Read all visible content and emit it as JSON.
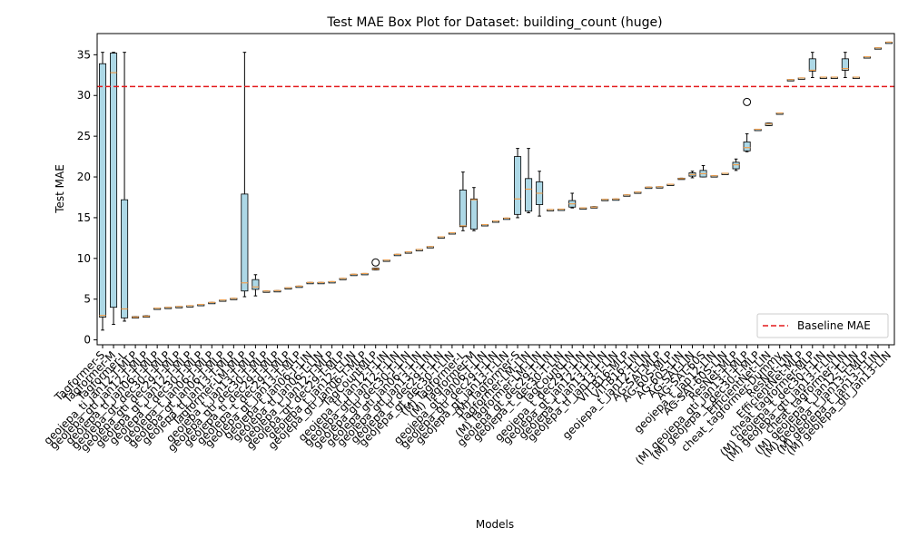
{
  "chart_data": {
    "type": "box",
    "title": "Test MAE Box Plot for Dataset: building_count (huge)",
    "xlabel": "Models",
    "ylabel": "Test MAE",
    "ylim": [
      -0.6,
      37.6
    ],
    "yticks": [
      0,
      5,
      10,
      15,
      20,
      25,
      30,
      35
    ],
    "grid": false,
    "legend": {
      "placement": "lower-right",
      "entries": [
        {
          "label": "Baseline MAE",
          "color": "#e41a1c",
          "style": "dashed"
        }
      ]
    },
    "baseline": {
      "name": "Baseline MAE",
      "value": 31.1,
      "color": "#e41a1c"
    },
    "box_fill": "#add8e6",
    "median_color": "#f0a050",
    "models": [
      {
        "label": "Tagformer-S",
        "min": 1.2,
        "q1": 2.8,
        "median": 3.0,
        "q3": 33.9,
        "max": 35.3
      },
      {
        "label": "Tagformer-M",
        "min": 1.9,
        "q1": 4.0,
        "median": 32.8,
        "q3": 35.2,
        "max": 35.3
      },
      {
        "label": "Tagformer-L",
        "min": 2.3,
        "q1": 2.7,
        "median": 3.8,
        "q3": 17.2,
        "max": 35.3
      },
      {
        "label": "geojepa_ti_jan12-T-MLP",
        "min": 2.8,
        "q1": 2.8,
        "median": 2.8,
        "q3": 2.85,
        "max": 2.85
      },
      {
        "label": "geojepa_gti_jan12-T-MLP",
        "min": 2.9,
        "q1": 2.9,
        "median": 2.9,
        "q3": 2.95,
        "max": 2.95
      },
      {
        "label": "geojepa_ti_jan06-T-MLP",
        "min": 3.85,
        "q1": 3.85,
        "median": 3.9,
        "q3": 3.9,
        "max": 3.9
      },
      {
        "label": "geojepa_gt_dec30-T-MLP",
        "min": 3.95,
        "q1": 3.95,
        "median": 4.0,
        "q3": 4.0,
        "max": 4.0
      },
      {
        "label": "geojepa_gti_dec29-T-MLP",
        "min": 4.05,
        "q1": 4.05,
        "median": 4.1,
        "q3": 4.1,
        "max": 4.1
      },
      {
        "label": "geojepa_gt_jan12-T-MLP",
        "min": 4.15,
        "q1": 4.15,
        "median": 4.2,
        "q3": 4.2,
        "max": 4.2
      },
      {
        "label": "geojepa_t_dec30-T-MLP",
        "min": 4.3,
        "q1": 4.3,
        "median": 4.35,
        "q3": 4.35,
        "max": 4.35
      },
      {
        "label": "geojepa_t_jan06-T-MLP",
        "min": 4.55,
        "q1": 4.55,
        "median": 4.6,
        "q3": 4.6,
        "max": 4.6
      },
      {
        "label": "geojepa_gt_jan06-T-MLP",
        "min": 4.85,
        "q1": 4.85,
        "median": 4.9,
        "q3": 4.9,
        "max": 4.9
      },
      {
        "label": "geojepa_ti_jan13-T-MLP",
        "min": 5.05,
        "q1": 5.05,
        "median": 5.1,
        "q3": 5.1,
        "max": 5.1
      },
      {
        "label": "Tagformer-LM-MLP",
        "min": 5.3,
        "q1": 6.0,
        "median": 7.0,
        "q3": 17.9,
        "max": 35.3
      },
      {
        "label": "geojepa_t_jan13-T-MLP",
        "min": 5.4,
        "q1": 6.2,
        "median": 6.5,
        "q3": 7.4,
        "max": 8.0
      },
      {
        "label": "geojepa_gti_dec30-T-MLP",
        "min": 5.95,
        "q1": 5.95,
        "median": 6.0,
        "q3": 6.0,
        "max": 6.0
      },
      {
        "label": "geojepa_ti_dec29-T-MLP",
        "min": 6.0,
        "q1": 6.0,
        "median": 6.05,
        "q3": 6.05,
        "max": 6.05
      },
      {
        "label": "geojepa_t_dec29-T-MLP",
        "min": 6.35,
        "q1": 6.35,
        "median": 6.4,
        "q3": 6.4,
        "max": 6.4
      },
      {
        "label": "geojepa_gt_jan13-T-MLP",
        "min": 6.55,
        "q1": 6.55,
        "median": 6.6,
        "q3": 6.6,
        "max": 6.6
      },
      {
        "label": "geojepa_t_jan06-T-LIN",
        "min": 7.0,
        "q1": 7.0,
        "median": 7.05,
        "q3": 7.05,
        "max": 7.05
      },
      {
        "label": "geojepa_ti_jan06-T-LIN",
        "min": 7.0,
        "q1": 7.0,
        "median": 7.05,
        "q3": 7.05,
        "max": 7.05
      },
      {
        "label": "geojepa_t_jan12-T-MLP",
        "min": 7.1,
        "q1": 7.1,
        "median": 7.15,
        "q3": 7.15,
        "max": 7.15
      },
      {
        "label": "geojepa_gt_dec29-T-MLP",
        "min": 7.5,
        "q1": 7.5,
        "median": 7.55,
        "q3": 7.55,
        "max": 7.55
      },
      {
        "label": "geojepa_t_jan12-T-LIN",
        "min": 8.0,
        "q1": 8.0,
        "median": 8.05,
        "q3": 8.05,
        "max": 8.05
      },
      {
        "label": "geojepa_gti_jan06-T-MLP",
        "min": 8.1,
        "q1": 8.1,
        "median": 8.15,
        "q3": 8.15,
        "max": 8.15
      },
      {
        "label": "TagCountMLP",
        "min": 8.6,
        "q1": 8.6,
        "median": 8.7,
        "q3": 8.8,
        "max": 8.8,
        "fliers": [
          9.5
        ]
      },
      {
        "label": "geojepa_ti_jan12-T-LIN",
        "min": 9.75,
        "q1": 9.75,
        "median": 9.8,
        "q3": 9.8,
        "max": 9.8
      },
      {
        "label": "geojepa_gti_jan12-T-LIN",
        "min": 10.45,
        "q1": 10.45,
        "median": 10.5,
        "q3": 10.5,
        "max": 10.5
      },
      {
        "label": "geojepa_gti_dec30-T-LIN",
        "min": 10.75,
        "q1": 10.75,
        "median": 10.8,
        "q3": 10.8,
        "max": 10.8
      },
      {
        "label": "geojepa_gti_jan06-T-LIN",
        "min": 11.05,
        "q1": 11.05,
        "median": 11.1,
        "q3": 11.1,
        "max": 11.1
      },
      {
        "label": "geojepa_gti_jan13-T-LIN",
        "min": 11.4,
        "q1": 11.4,
        "median": 11.45,
        "q3": 11.45,
        "max": 11.45
      },
      {
        "label": "geojepa_ti_dec29-T-LIN",
        "min": 12.6,
        "q1": 12.6,
        "median": 12.65,
        "q3": 12.65,
        "max": 12.65
      },
      {
        "label": "geojepa_gt_dec30-T-LIN",
        "min": 13.1,
        "q1": 13.1,
        "median": 13.15,
        "q3": 13.15,
        "max": 13.15
      },
      {
        "label": "(M) Tagformer-L",
        "min": 13.4,
        "q1": 13.9,
        "median": 14.0,
        "q3": 18.4,
        "max": 20.6
      },
      {
        "label": "(M) Tagformer-M",
        "min": 13.4,
        "q1": 13.6,
        "median": 17.2,
        "q3": 17.3,
        "max": 18.7
      },
      {
        "label": "geojepa_gt_jan06-T-LIN",
        "min": 14.1,
        "q1": 14.1,
        "median": 14.15,
        "q3": 14.15,
        "max": 14.15
      },
      {
        "label": "geojepa_gti_dec29-T-LIN",
        "min": 14.55,
        "q1": 14.55,
        "median": 14.6,
        "q3": 14.6,
        "max": 14.6
      },
      {
        "label": "geojepa_gt_jan13-T-LIN",
        "min": 14.9,
        "q1": 14.9,
        "median": 14.95,
        "q3": 14.95,
        "max": 14.95
      },
      {
        "label": "(M) Tagformer-S",
        "min": 15.0,
        "q1": 15.4,
        "median": 17.3,
        "q3": 22.5,
        "max": 23.5
      },
      {
        "label": "Tagformer-LM-LIN",
        "min": 15.6,
        "q1": 15.8,
        "median": 18.5,
        "q3": 19.8,
        "max": 23.5
      },
      {
        "label": "(M) Tagformer-LM-LIN",
        "min": 15.2,
        "q1": 16.6,
        "median": 18.0,
        "q3": 19.4,
        "max": 20.7
      },
      {
        "label": "geojepa_gt_dec29-T-LIN",
        "min": 15.95,
        "q1": 15.95,
        "median": 16.0,
        "q3": 16.0,
        "max": 16.0
      },
      {
        "label": "geojepa_t_dec30-T-LIN",
        "min": 16.0,
        "q1": 16.0,
        "median": 16.05,
        "q3": 16.05,
        "max": 16.05
      },
      {
        "label": "TagCountLIN",
        "min": 16.2,
        "q1": 16.3,
        "median": 16.7,
        "q3": 17.1,
        "max": 18.0
      },
      {
        "label": "geojepa_t_dec29-T-LIN",
        "min": 16.15,
        "q1": 16.15,
        "median": 16.2,
        "q3": 16.2,
        "max": 16.2
      },
      {
        "label": "geojepa_gt_jan12-T-LIN",
        "min": 16.25,
        "q1": 16.25,
        "median": 16.3,
        "q3": 16.35,
        "max": 16.35
      },
      {
        "label": "geojepa_t_jan13-T-LIN",
        "min": 17.2,
        "q1": 17.2,
        "median": 17.25,
        "q3": 17.25,
        "max": 17.25
      },
      {
        "label": "geojepa_ti_jan13-T-LIN",
        "min": 17.25,
        "q1": 17.25,
        "median": 17.3,
        "q3": 17.3,
        "max": 17.3
      },
      {
        "label": "ViT-B16-MLP",
        "min": 17.75,
        "q1": 17.75,
        "median": 17.8,
        "q3": 17.8,
        "max": 17.8
      },
      {
        "label": "ViT-B16-LIN",
        "min": 18.1,
        "q1": 18.1,
        "median": 18.15,
        "q3": 18.15,
        "max": 18.15
      },
      {
        "label": "geojepa_t_jan12-T-LIN",
        "min": 18.7,
        "q1": 18.7,
        "median": 18.75,
        "q3": 18.75,
        "max": 18.75
      },
      {
        "label": "AG-SAT-MLP",
        "min": 18.75,
        "q1": 18.75,
        "median": 18.8,
        "q3": 18.8,
        "max": 18.8
      },
      {
        "label": "AG-60S-MLP",
        "min": 19.05,
        "q1": 19.05,
        "median": 19.1,
        "q3": 19.1,
        "max": 19.1
      },
      {
        "label": "AG-60S-LIN",
        "min": 19.75,
        "q1": 19.75,
        "median": 19.8,
        "q3": 19.85,
        "max": 19.85
      },
      {
        "label": "AG-SAT-LIN",
        "min": 19.9,
        "q1": 20.1,
        "median": 20.3,
        "q3": 20.5,
        "max": 20.7
      },
      {
        "label": "AG-SAT-60S",
        "min": 20.0,
        "q1": 20.0,
        "median": 20.4,
        "q3": 20.8,
        "max": 21.4
      },
      {
        "label": "geojepa_t_jan12-LIN",
        "min": 20.1,
        "q1": 20.1,
        "median": 20.15,
        "q3": 20.15,
        "max": 20.15
      },
      {
        "label": "AG-SAT-60S-LIN",
        "min": 20.4,
        "q1": 20.4,
        "median": 20.45,
        "q3": 20.45,
        "max": 20.45
      },
      {
        "label": "ResNet-MLP",
        "min": 20.8,
        "q1": 21.0,
        "median": 21.5,
        "q3": 21.8,
        "max": 22.2
      },
      {
        "label": "(M) geojepa_gti_jan13-T-MLP",
        "min": 23.1,
        "q1": 23.2,
        "median": 23.6,
        "q3": 24.3,
        "max": 25.3,
        "fliers": [
          29.2
        ]
      },
      {
        "label": "(M) geojepa_t_dec30-T-MLP",
        "min": 25.8,
        "q1": 25.8,
        "median": 25.85,
        "q3": 25.85,
        "max": 25.85
      },
      {
        "label": "EfficientNet-LIN",
        "min": 26.3,
        "q1": 26.3,
        "median": 26.5,
        "q3": 26.6,
        "max": 26.6
      },
      {
        "label": "cheat_tagformer-Dummy",
        "min": 27.8,
        "q1": 27.8,
        "median": 27.85,
        "q3": 27.85,
        "max": 27.85
      },
      {
        "label": "ResNet-LIN",
        "min": 31.9,
        "q1": 31.9,
        "median": 31.95,
        "q3": 31.95,
        "max": 31.95
      },
      {
        "label": "EfficientNet-MLP",
        "min": 32.1,
        "q1": 32.1,
        "median": 32.15,
        "q3": 32.15,
        "max": 32.15
      },
      {
        "label": "cheat_tagformer-MLP",
        "min": 32.2,
        "q1": 33.0,
        "median": 33.1,
        "q3": 34.5,
        "max": 35.3
      },
      {
        "label": "(M) geojepa_t_dec30-T-LIN",
        "min": 32.2,
        "q1": 32.2,
        "median": 32.25,
        "q3": 32.25,
        "max": 32.25
      },
      {
        "label": "(M) geojepa_gti_jan13-T-LIN",
        "min": 32.2,
        "q1": 32.2,
        "median": 32.25,
        "q3": 32.25,
        "max": 32.25
      },
      {
        "label": "cheat_tagformer-LIN",
        "min": 32.2,
        "q1": 33.1,
        "median": 33.3,
        "q3": 34.5,
        "max": 35.3
      },
      {
        "label": "(M) geojepa_t_jan12-T-LIN",
        "min": 32.2,
        "q1": 32.2,
        "median": 32.25,
        "q3": 32.25,
        "max": 32.25
      },
      {
        "label": "(M) geojepa_t_jan13-T-MLP",
        "min": 34.7,
        "q1": 34.7,
        "median": 34.75,
        "q3": 34.75,
        "max": 34.75
      },
      {
        "label": "(M) geojepa_t_jan13-T-LIN",
        "min": 35.8,
        "q1": 35.8,
        "median": 35.85,
        "q3": 35.85,
        "max": 35.85
      },
      {
        "label": "(M) geojepa_gti_jan13-LIN",
        "min": 36.5,
        "q1": 36.5,
        "median": 36.55,
        "q3": 36.55,
        "max": 36.55
      }
    ]
  }
}
